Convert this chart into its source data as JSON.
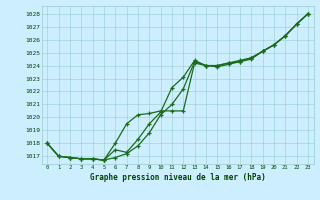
{
  "hours": [
    0,
    1,
    2,
    3,
    4,
    5,
    6,
    7,
    8,
    9,
    10,
    11,
    12,
    13,
    14,
    15,
    16,
    17,
    18,
    19,
    20,
    21,
    22,
    23
  ],
  "series1": [
    1018.0,
    1017.0,
    1016.9,
    1016.8,
    1016.8,
    1016.7,
    1016.9,
    1017.2,
    1017.8,
    1018.8,
    1020.2,
    1021.0,
    1022.2,
    1024.3,
    1024.0,
    1023.9,
    1024.1,
    1024.3,
    1024.5,
    1025.1,
    1025.6,
    1026.3,
    1027.2,
    1028.0
  ],
  "series2": [
    1018.0,
    1017.0,
    1016.9,
    1016.8,
    1016.8,
    1016.7,
    1017.5,
    1017.3,
    1018.3,
    1019.5,
    1020.4,
    1022.3,
    1023.1,
    1024.4,
    1024.0,
    1024.0,
    1024.2,
    1024.3,
    1024.6,
    1025.1,
    1025.6,
    1026.3,
    1027.2,
    1028.0
  ],
  "series3": [
    1018.0,
    1017.0,
    1016.9,
    1016.8,
    1016.8,
    1016.7,
    1018.0,
    1019.5,
    1020.2,
    1020.3,
    1020.5,
    1020.5,
    1020.5,
    1024.2,
    1024.0,
    1024.0,
    1024.2,
    1024.4,
    1024.6,
    1025.1,
    1025.6,
    1026.3,
    1027.2,
    1028.0
  ],
  "line_color": "#1a6b1a",
  "marker": "+",
  "bg_color": "#cceeff",
  "grid_color": "#99cccc",
  "text_color": "#004400",
  "title": "Graphe pression niveau de la mer (hPa)",
  "ylim": [
    1016.4,
    1028.6
  ],
  "yticks": [
    1017,
    1018,
    1019,
    1020,
    1021,
    1022,
    1023,
    1024,
    1025,
    1026,
    1027,
    1028
  ],
  "xlim": [
    -0.5,
    23.5
  ],
  "figsize": [
    3.2,
    2.0
  ],
  "dpi": 100
}
